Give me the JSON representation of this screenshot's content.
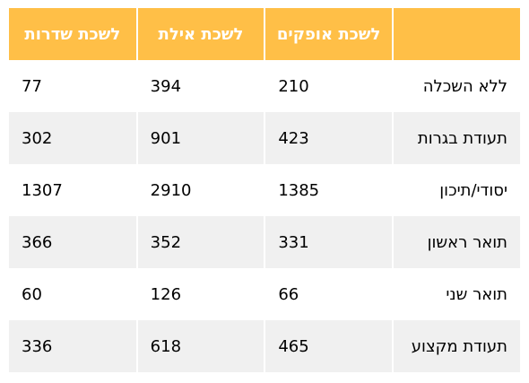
{
  "table": {
    "headers": [
      "",
      "לשכת אופקים",
      "לשכת אילת",
      "לשכת שדרות"
    ],
    "rows": [
      {
        "label": "ללא השכלה",
        "values": [
          "210",
          "394",
          "77"
        ]
      },
      {
        "label": "תעודת בגרות",
        "values": [
          "423",
          "901",
          "302"
        ]
      },
      {
        "label": "יסודי/תיכון",
        "values": [
          "1385",
          "2910",
          "1307"
        ]
      },
      {
        "label": "תואר ראשון",
        "values": [
          "331",
          "352",
          "366"
        ]
      },
      {
        "label": "תואר שני",
        "values": [
          "66",
          "126",
          "60"
        ]
      },
      {
        "label": "תעודת מקצוע",
        "values": [
          "465",
          "618",
          "336"
        ]
      }
    ]
  },
  "colors": {
    "header_bg": "#ffbf47",
    "header_text": "#ffffff",
    "row_alt_bg": "#f0f0f0",
    "row_bg": "#ffffff"
  }
}
